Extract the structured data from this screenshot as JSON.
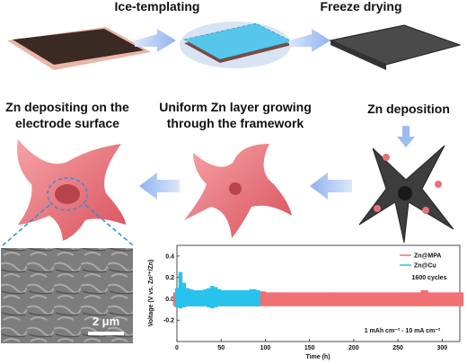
{
  "steps": {
    "ice_templating": "Ice-templating",
    "freeze_drying": "Freeze drying",
    "zn_deposition": "Zn deposition",
    "uniform_growth": [
      "Uniform Zn layer growing",
      "through the framework"
    ],
    "surface_depositing": [
      "Zn depositing on the",
      "electrode surface"
    ]
  },
  "sem": {
    "scale_bar": "2 μm"
  },
  "chart_data": {
    "type": "band",
    "xlabel": "Time (h)",
    "ylabel": "Voltage (V vs. Zn²⁺/Zn)",
    "annotations": [
      "1600 cycles",
      "1 mAh cm⁻² - 10 mA cm⁻²"
    ],
    "xlim": [
      0,
      320
    ],
    "xticks": [
      0,
      50,
      100,
      150,
      200,
      250,
      300
    ],
    "ylim": [
      -0.4,
      0.5
    ],
    "yticks": [
      -0.2,
      {
        "value": 0,
        "label": "0.0"
      },
      0.2,
      0.4
    ],
    "legend": "upper right",
    "series": [
      {
        "name": "Zn@MPA",
        "color": "#f07073",
        "x": [
          0,
          8,
          16,
          24,
          32,
          40,
          48,
          56,
          64,
          72,
          80,
          88,
          96,
          104,
          112,
          120,
          128,
          136,
          144,
          152,
          160,
          168,
          176,
          184,
          192,
          200,
          208,
          216,
          224,
          232,
          240,
          248,
          256,
          264,
          272,
          280,
          288,
          296,
          304,
          312,
          320
        ],
        "upper": [
          0.06,
          0.06,
          0.06,
          0.06,
          0.06,
          0.06,
          0.06,
          0.06,
          0.06,
          0.06,
          0.06,
          0.06,
          0.07,
          0.06,
          0.06,
          0.06,
          0.06,
          0.06,
          0.06,
          0.06,
          0.06,
          0.06,
          0.06,
          0.06,
          0.06,
          0.06,
          0.06,
          0.06,
          0.06,
          0.06,
          0.06,
          0.06,
          0.06,
          0.06,
          0.06,
          0.08,
          0.06,
          0.06,
          0.06,
          0.06,
          0.06
        ],
        "lower": [
          -0.07,
          -0.07,
          -0.07,
          -0.07,
          -0.07,
          -0.07,
          -0.07,
          -0.07,
          -0.07,
          -0.07,
          -0.07,
          -0.07,
          -0.07,
          -0.07,
          -0.07,
          -0.07,
          -0.07,
          -0.07,
          -0.07,
          -0.07,
          -0.07,
          -0.07,
          -0.07,
          -0.07,
          -0.07,
          -0.07,
          -0.07,
          -0.07,
          -0.07,
          -0.07,
          -0.07,
          -0.07,
          -0.07,
          -0.07,
          -0.07,
          -0.07,
          -0.07,
          -0.07,
          -0.07,
          -0.07,
          -0.07
        ]
      },
      {
        "name": "Zn@Cu",
        "color": "#27c3ec",
        "x": [
          0,
          4,
          8,
          12,
          16,
          20,
          24,
          28,
          32,
          36,
          40,
          44,
          48,
          52,
          56,
          60,
          64,
          68,
          72,
          76,
          80,
          84,
          88,
          92
        ],
        "upper": [
          0.1,
          0.25,
          0.15,
          0.1,
          0.09,
          0.08,
          0.08,
          0.08,
          0.09,
          0.1,
          0.12,
          0.11,
          0.09,
          0.08,
          0.08,
          0.08,
          0.08,
          0.08,
          0.08,
          0.08,
          0.08,
          0.09,
          0.09,
          0.08
        ],
        "lower": [
          -0.08,
          -0.09,
          -0.08,
          -0.07,
          -0.07,
          -0.07,
          -0.07,
          -0.07,
          -0.07,
          -0.08,
          -0.09,
          -0.08,
          -0.07,
          -0.07,
          -0.07,
          -0.07,
          -0.07,
          -0.07,
          -0.07,
          -0.07,
          -0.07,
          -0.07,
          -0.07,
          -0.07
        ]
      }
    ]
  }
}
